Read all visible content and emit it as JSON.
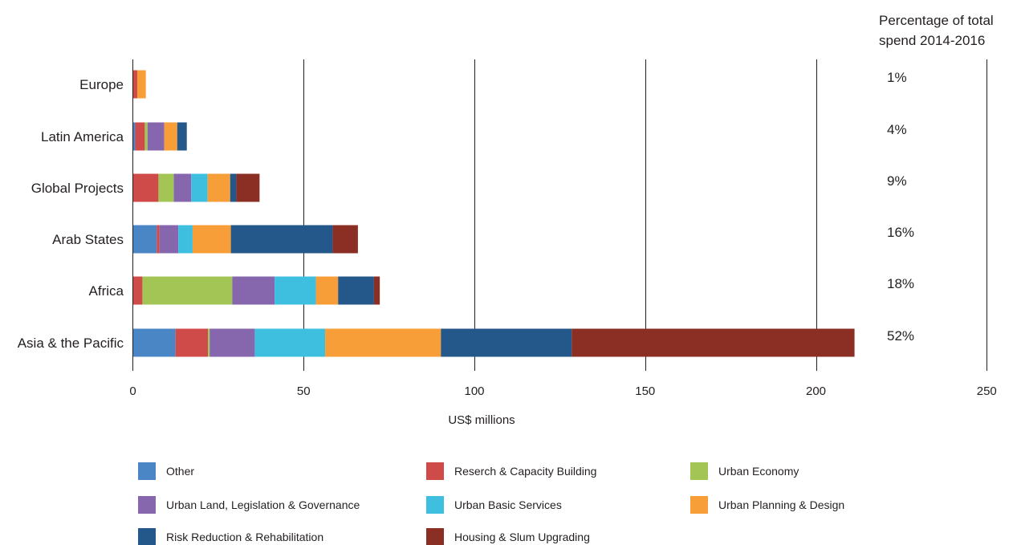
{
  "chart_data": {
    "type": "bar",
    "orientation": "horizontal",
    "stacked": true,
    "xlabel": "US$ millions",
    "xlim": [
      0,
      250
    ],
    "xticks": [
      0,
      50,
      100,
      150,
      200,
      250
    ],
    "grid": "vertical",
    "categories": [
      "Europe",
      "Latin America",
      "Global Projects",
      "Arab States",
      "Africa",
      "Asia & the Pacific"
    ],
    "percentage_header": "Percentage of total spend 2014-2016",
    "percentages": [
      "1%",
      "4%",
      "9%",
      "16%",
      "18%",
      "52%"
    ],
    "legend_position": "bottom",
    "series": [
      {
        "name": "Other",
        "color": "#4a86c5",
        "values": [
          0,
          0.7,
          0,
          7,
          0,
          12.5
        ]
      },
      {
        "name": "Reserch & Capacity Building",
        "color": "#cf4b4a",
        "values": [
          1.3,
          2.8,
          7.5,
          0.8,
          2.8,
          9.5
        ]
      },
      {
        "name": "Urban Economy",
        "color": "#a3c556",
        "values": [
          0,
          0.8,
          4.5,
          0,
          26.3,
          0.5
        ]
      },
      {
        "name": "Urban Land, Legislation & Governance",
        "color": "#8667ad",
        "values": [
          0,
          4.9,
          5.1,
          5.5,
          12.4,
          13.2
        ]
      },
      {
        "name": "Urban Basic Services",
        "color": "#3fbfe0",
        "values": [
          0,
          0,
          4.8,
          4.2,
          12.1,
          20.6
        ]
      },
      {
        "name": "Urban Planning & Design",
        "color": "#f79e38",
        "values": [
          2.5,
          3.8,
          6.6,
          11.2,
          6.5,
          33.9
        ]
      },
      {
        "name": "Risk Reduction & Rehabilitation",
        "color": "#24578a",
        "values": [
          0,
          2.8,
          1.8,
          29.8,
          10.5,
          38.3
        ]
      },
      {
        "name": "Housing & Slum Upgrading",
        "color": "#8b2e24",
        "values": [
          0,
          0,
          6.8,
          7.4,
          1.7,
          82.8
        ]
      }
    ]
  }
}
